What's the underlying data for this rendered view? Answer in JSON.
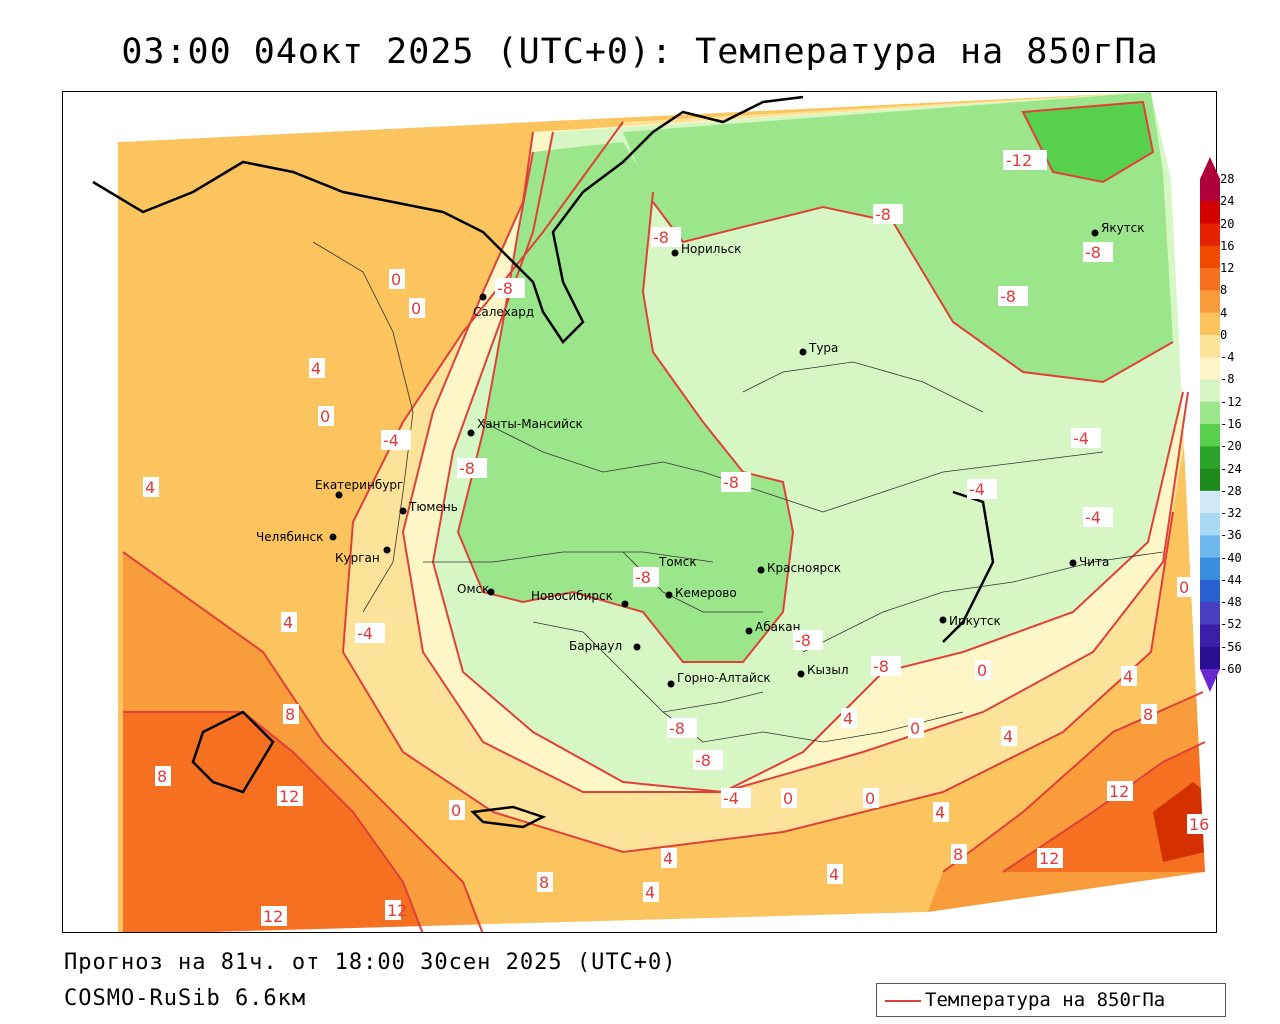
{
  "title": "03:00 04окт 2025 (UTC+0): Температура на 850гПа",
  "footer": {
    "forecast": "Прогноз на 81ч. от 18:00 30сен 2025 (UTC+0)",
    "model": "COSMO-RuSib 6.6км"
  },
  "legend": {
    "label": "Температура на 850гПа",
    "line_color": "#e0403a"
  },
  "colorbar": {
    "ticks": [
      "28",
      "24",
      "20",
      "16",
      "12",
      "8",
      "4",
      "0",
      "-4",
      "-8",
      "-12",
      "-16",
      "-20",
      "-24",
      "-28",
      "-32",
      "-36",
      "-40",
      "-44",
      "-48",
      "-52",
      "-56",
      "-60"
    ],
    "colors": [
      "#b0003a",
      "#d40000",
      "#e62200",
      "#f04a00",
      "#f57020",
      "#f89c3c",
      "#fbc45e",
      "#fde39a",
      "#fdf6c6",
      "#d6f7c4",
      "#9be68a",
      "#57d04e",
      "#2aa42a",
      "#1e8a1e",
      "#cfe9f7",
      "#a8d8f4",
      "#6fb8ee",
      "#3a8ee0",
      "#2a5fd0",
      "#4a3fc0",
      "#3a20a8",
      "#2a1090"
    ]
  },
  "cities": [
    {
      "name": "Норильск"
    },
    {
      "name": "Салехард"
    },
    {
      "name": "Тура"
    },
    {
      "name": "Якутск"
    },
    {
      "name": "Ханты-Мансийск"
    },
    {
      "name": "Екатеринбург"
    },
    {
      "name": "Тюмень"
    },
    {
      "name": "Челябинск"
    },
    {
      "name": "Курган"
    },
    {
      "name": "Омск"
    },
    {
      "name": "Новосибирск"
    },
    {
      "name": "Томск"
    },
    {
      "name": "Кемерово"
    },
    {
      "name": "Красноярск"
    },
    {
      "name": "Абакан"
    },
    {
      "name": "Барнаул"
    },
    {
      "name": "Горно-Алтайск"
    },
    {
      "name": "Кызыл"
    },
    {
      "name": "Иркутск"
    },
    {
      "name": "Чита"
    }
  ],
  "isotherm_labels": [
    "-12",
    "-8",
    "-8",
    "-8",
    "-8",
    "-8",
    "-8",
    "-8",
    "-8",
    "-8",
    "-8",
    "-8",
    "-8",
    "-4",
    "-4",
    "-4",
    "-4",
    "-4",
    "-4",
    "0",
    "0",
    "0",
    "0",
    "0",
    "0",
    "0",
    "0",
    "0",
    "4",
    "4",
    "4",
    "4",
    "4",
    "4",
    "4",
    "4",
    "4",
    "4",
    "8",
    "8",
    "8",
    "8",
    "8",
    "12",
    "12",
    "12",
    "12",
    "12",
    "16"
  ]
}
